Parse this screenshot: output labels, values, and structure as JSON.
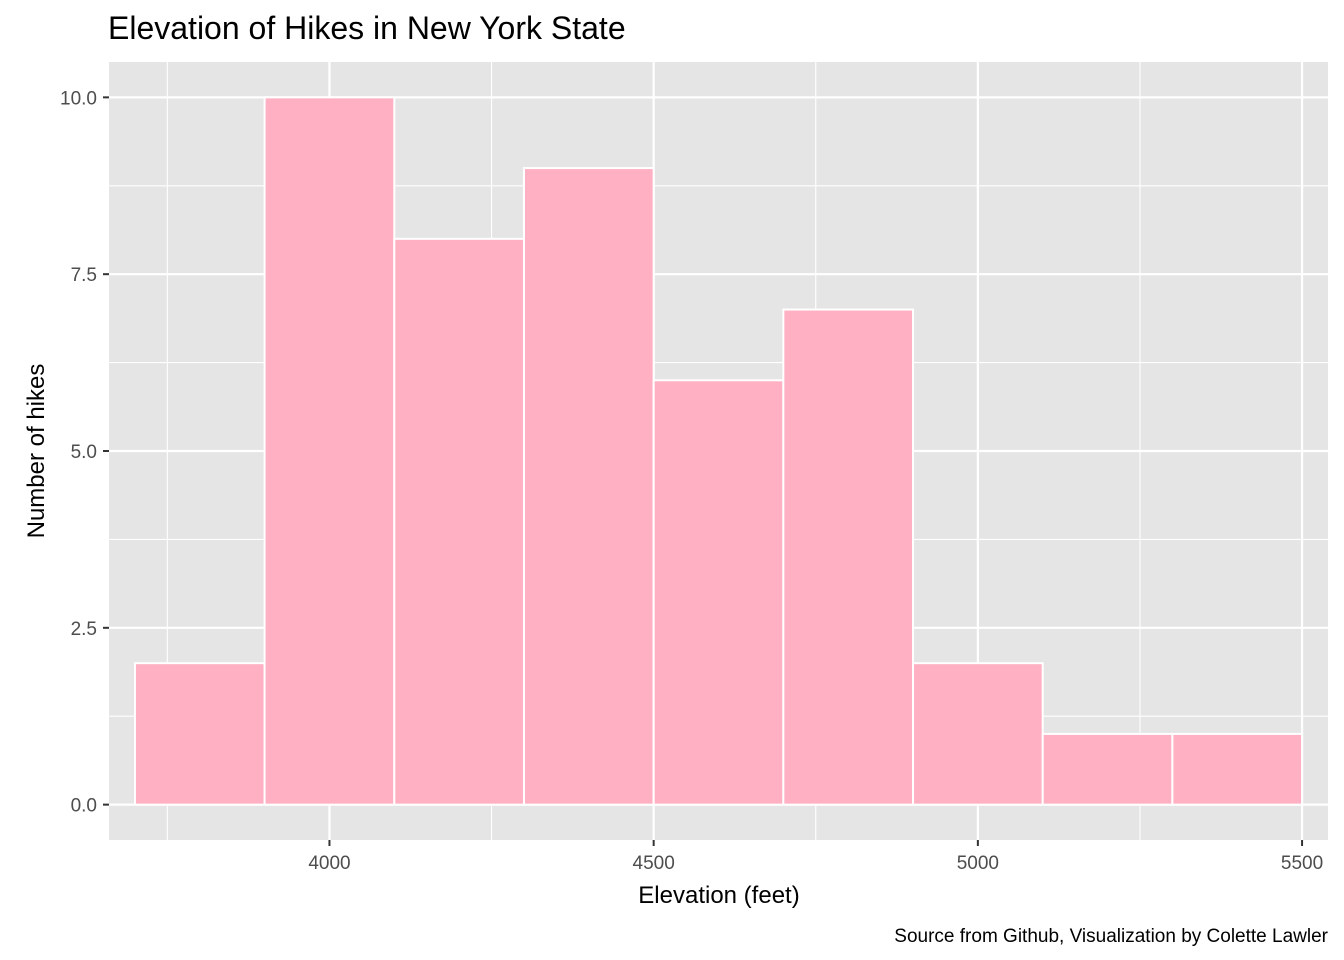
{
  "chart_data": {
    "type": "bar",
    "title": "Elevation of Hikes in New York State",
    "xlabel": "Elevation (feet)",
    "ylabel": "Number of hikes",
    "caption": "Source from Github, Visualization by Colette Lawler",
    "xlim": [
      3660,
      5540
    ],
    "ylim": [
      -0.5,
      10.5
    ],
    "x_ticks": [
      4000,
      4500,
      5000,
      5500
    ],
    "x_tick_labels": [
      "4000",
      "4500",
      "5000",
      "5500"
    ],
    "y_ticks": [
      0,
      2.5,
      5,
      7.5,
      10
    ],
    "y_tick_labels": [
      "0.0",
      "2.5",
      "5.0",
      "7.5",
      "10.0"
    ],
    "bins": [
      {
        "x0": 3700,
        "x1": 3900,
        "count": 2
      },
      {
        "x0": 3900,
        "x1": 4100,
        "count": 10
      },
      {
        "x0": 4100,
        "x1": 4300,
        "count": 8
      },
      {
        "x0": 4300,
        "x1": 4500,
        "count": 9
      },
      {
        "x0": 4500,
        "x1": 4700,
        "count": 6
      },
      {
        "x0": 4700,
        "x1": 4900,
        "count": 7
      },
      {
        "x0": 4900,
        "x1": 5100,
        "count": 2
      },
      {
        "x0": 5100,
        "x1": 5300,
        "count": 1
      },
      {
        "x0": 5300,
        "x1": 5500,
        "count": 1
      }
    ],
    "grid": true,
    "colors": {
      "panel_background": "#e5e5e5",
      "grid": "#ffffff",
      "bar_fill": "#ffb0c3",
      "bar_outline": "#ffffff"
    }
  }
}
